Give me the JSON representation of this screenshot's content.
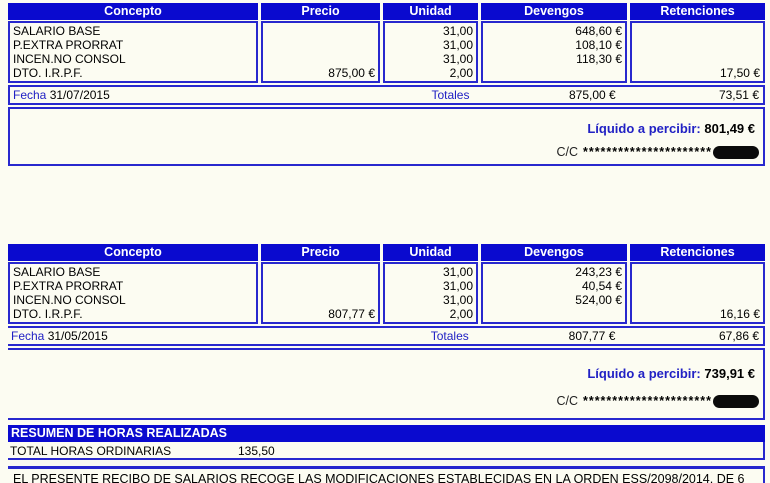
{
  "colors": {
    "header_bar_blue": "#0A0ACF",
    "border_blue": "#2828CE",
    "accent_text_blue": "#2121C4",
    "page_background": "#FCFCF2",
    "redaction_black": "#0B0B0B"
  },
  "columns": [
    "Concepto",
    "Precio",
    "Unidad",
    "Devengos",
    "Retenciones"
  ],
  "payslips": [
    {
      "rows": [
        {
          "concepto": "SALARIO BASE",
          "precio": "",
          "unidad": "31,00",
          "devengos": "648,60 €",
          "retenciones": ""
        },
        {
          "concepto": "P.EXTRA PRORRAT",
          "precio": "",
          "unidad": "31,00",
          "devengos": "108,10 €",
          "retenciones": ""
        },
        {
          "concepto": "INCEN.NO CONSOL",
          "precio": "",
          "unidad": "31,00",
          "devengos": "118,30 €",
          "retenciones": ""
        },
        {
          "concepto": "DTO. I.R.P.F.",
          "precio": "875,00 €",
          "unidad": "2,00",
          "devengos": "",
          "retenciones": "17,50 €"
        }
      ],
      "fecha_label": "Fecha",
      "fecha_value": "31/07/2015",
      "totales_label": "Totales",
      "total_devengos": "875,00 €",
      "total_retenciones": "73,51 €",
      "liquido_label": "Líquido a percibir:",
      "liquido_value": "801,49 €",
      "cc_label": "C/C",
      "cc_mask": "**********************"
    },
    {
      "rows": [
        {
          "concepto": "SALARIO BASE",
          "precio": "",
          "unidad": "31,00",
          "devengos": "243,23 €",
          "retenciones": ""
        },
        {
          "concepto": "P.EXTRA PRORRAT",
          "precio": "",
          "unidad": "31,00",
          "devengos": "40,54 €",
          "retenciones": ""
        },
        {
          "concepto": "INCEN.NO CONSOL",
          "precio": "",
          "unidad": "31,00",
          "devengos": "524,00 €",
          "retenciones": ""
        },
        {
          "concepto": "DTO. I.R.P.F.",
          "precio": "807,77 €",
          "unidad": "2,00",
          "devengos": "",
          "retenciones": "16,16 €"
        }
      ],
      "fecha_label": "Fecha",
      "fecha_value": "31/05/2015",
      "totales_label": "Totales",
      "total_devengos": "807,77 €",
      "total_retenciones": "67,86 €",
      "liquido_label": "Líquido a percibir:",
      "liquido_value": "739,91 €",
      "cc_label": "C/C",
      "cc_mask": "**********************"
    }
  ],
  "resumen": {
    "title": "RESUMEN DE HORAS REALIZADAS",
    "row_label": "TOTAL HORAS ORDINARIAS",
    "row_value": "135,50"
  },
  "footer": {
    "note": "EL PRESENTE RECIBO DE SALARIOS RECOGE LAS MODIFICACIONES ESTABLECIDAS EN LA ORDEN ESS/2098/2014, DE 6"
  }
}
